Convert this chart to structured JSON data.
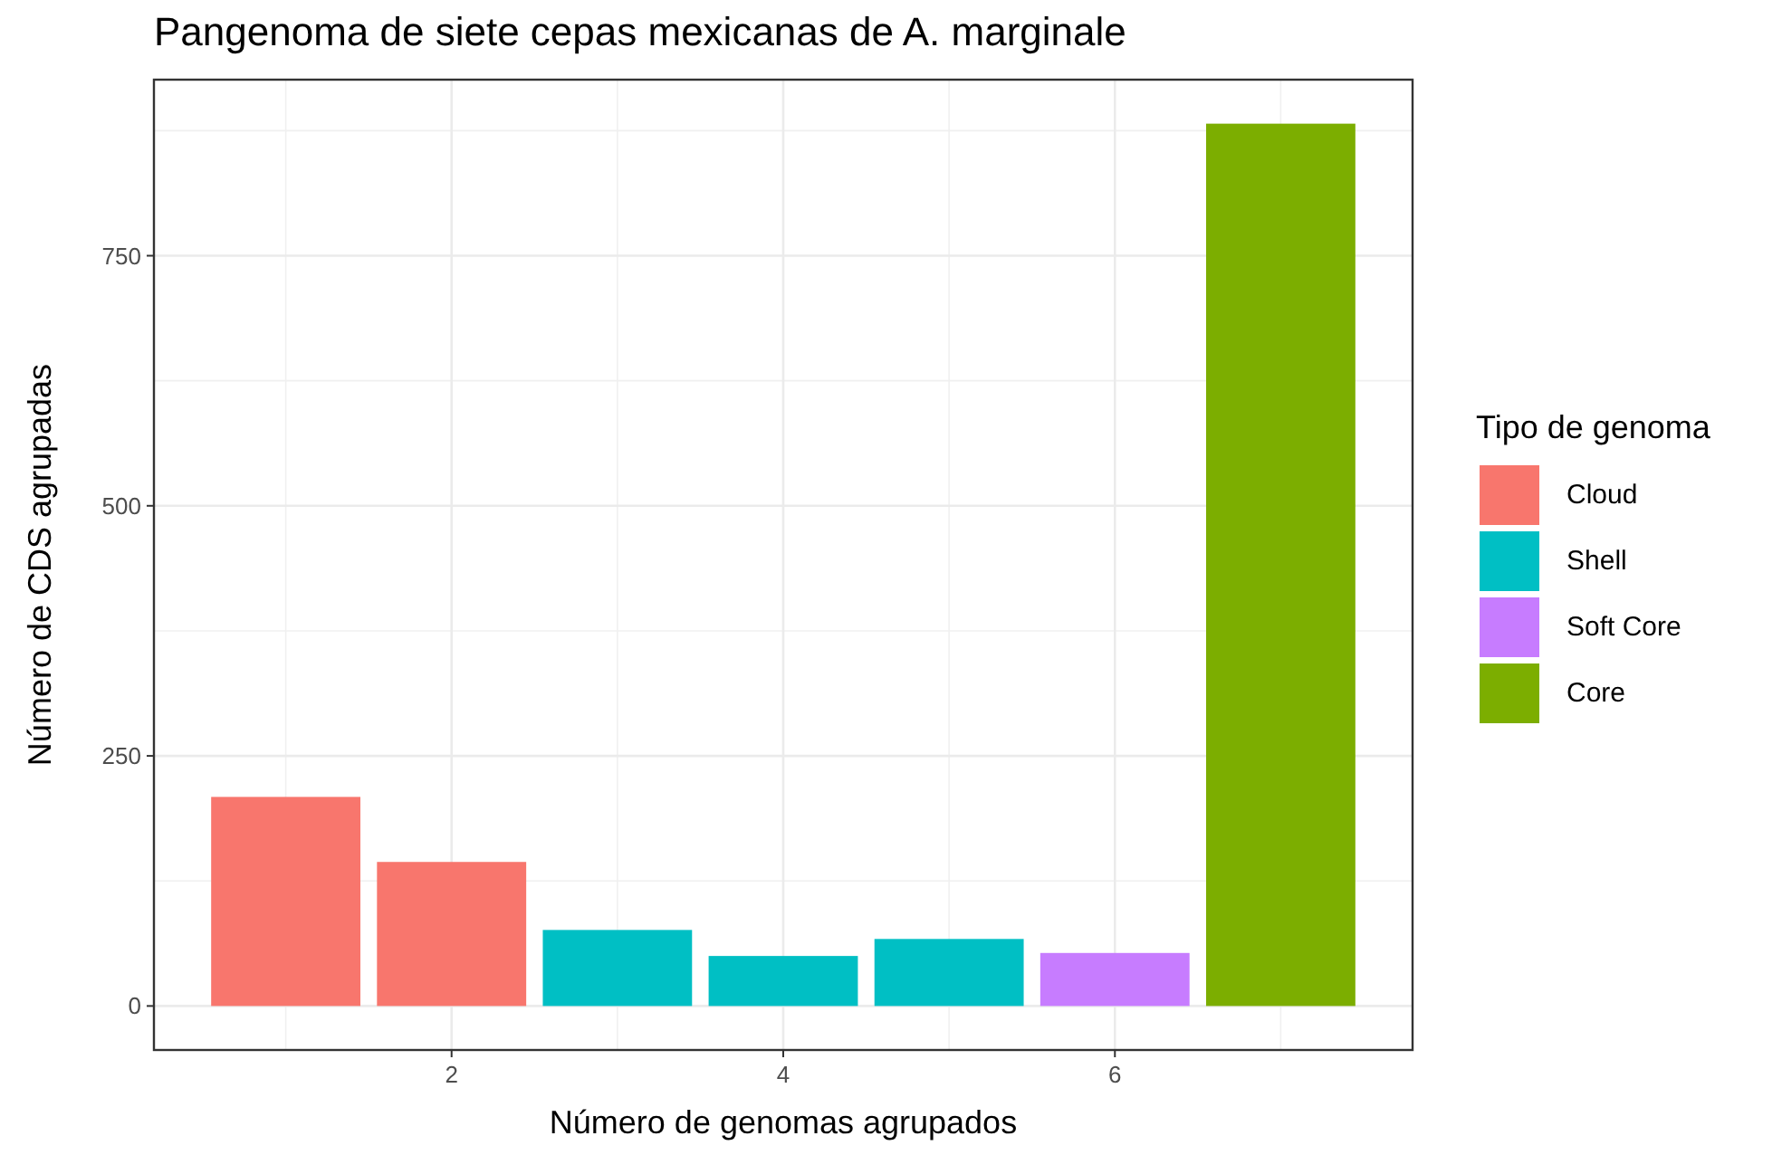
{
  "chart_data": {
    "type": "bar",
    "title": "Pangenoma de siete cepas mexicanas de A. marginale",
    "xlabel": "Número de genomas agrupados",
    "ylabel": "Número de CDS agrupadas",
    "legend_title": "Tipo de genoma",
    "series": [
      {
        "name": "Cloud",
        "color": "#f8766d",
        "x": [
          1,
          2
        ],
        "values": [
          209,
          144
        ]
      },
      {
        "name": "Shell",
        "color": "#00bfc4",
        "x": [
          3,
          4,
          5
        ],
        "values": [
          76,
          50,
          67
        ]
      },
      {
        "name": "Soft Core",
        "color": "#c77cff",
        "x": [
          6
        ],
        "values": [
          53
        ]
      },
      {
        "name": "Core",
        "color": "#7cae00",
        "x": [
          7
        ],
        "values": [
          882
        ]
      }
    ],
    "xlim": [
      0.205,
      7.795
    ],
    "xticks": [
      2,
      4,
      6
    ],
    "ylim": [
      -44,
      926
    ],
    "yticks": [
      0,
      250,
      500,
      750
    ],
    "grid": true,
    "legend": "right"
  }
}
